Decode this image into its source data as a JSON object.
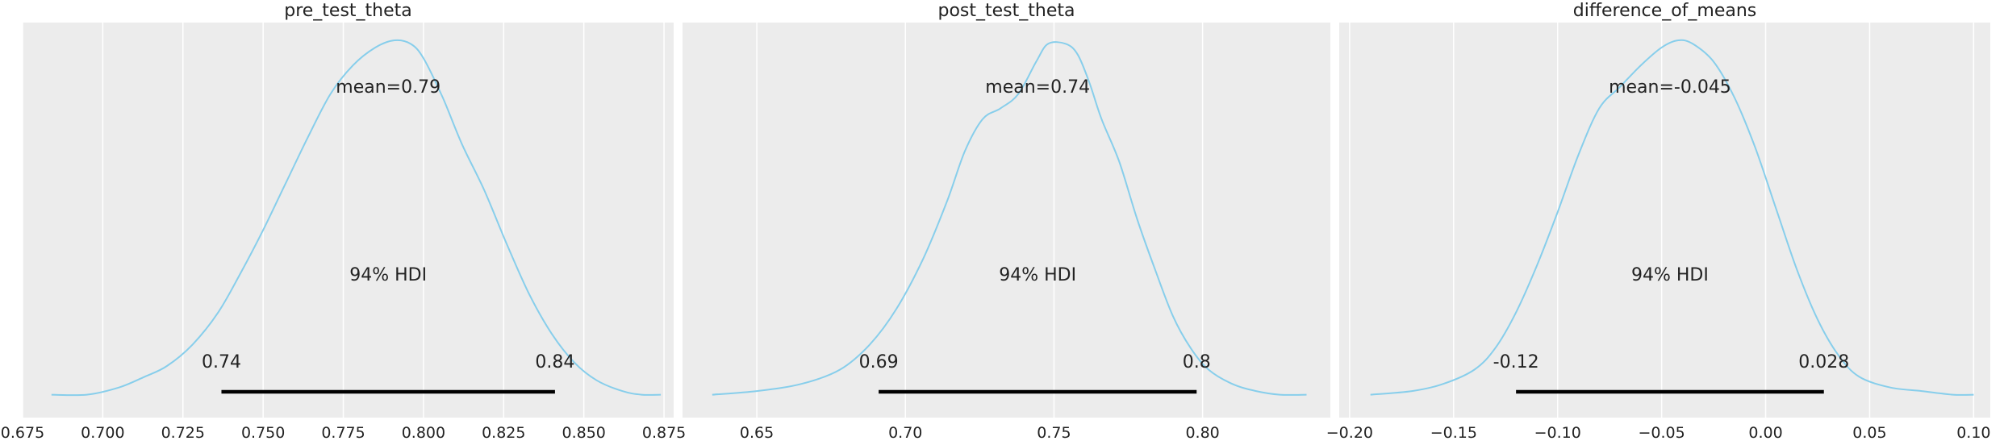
{
  "chart_data": [
    {
      "type": "density",
      "title": "pre_test_theta",
      "xlim": [
        0.675,
        0.878
      ],
      "xticks": [
        0.675,
        0.7,
        0.725,
        0.75,
        0.775,
        0.8,
        0.825,
        0.85,
        0.875
      ],
      "xtick_labels": [
        "0.675",
        "0.700",
        "0.725",
        "0.750",
        "0.775",
        "0.800",
        "0.825",
        "0.850",
        "0.875"
      ],
      "grid": true,
      "line_color": "#87ceeb",
      "density_x": [
        0.684,
        0.695,
        0.705,
        0.713,
        0.72,
        0.728,
        0.736,
        0.743,
        0.75,
        0.757,
        0.764,
        0.771,
        0.778,
        0.785,
        0.791,
        0.796,
        0.8,
        0.806,
        0.812,
        0.819,
        0.826,
        0.833,
        0.84,
        0.847,
        0.854,
        0.862,
        0.868,
        0.874
      ],
      "density_y": [
        0.01,
        0.01,
        0.03,
        0.06,
        0.09,
        0.15,
        0.24,
        0.35,
        0.47,
        0.6,
        0.73,
        0.85,
        0.93,
        0.98,
        1.0,
        0.99,
        0.95,
        0.84,
        0.71,
        0.58,
        0.43,
        0.29,
        0.18,
        0.1,
        0.05,
        0.02,
        0.01,
        0.01
      ],
      "mean_label": "mean=0.79",
      "hdi_label": "94% HDI",
      "hdi": [
        0.737,
        0.841
      ],
      "hdi_low_label": "0.74",
      "hdi_high_label": "0.84"
    },
    {
      "type": "density",
      "title": "post_test_theta",
      "xlim": [
        0.625,
        0.843
      ],
      "xticks": [
        0.65,
        0.7,
        0.75,
        0.8
      ],
      "xtick_labels": [
        "0.65",
        "0.70",
        "0.75",
        "0.80"
      ],
      "grid": true,
      "line_color": "#87ceeb",
      "density_x": [
        0.635,
        0.65,
        0.665,
        0.678,
        0.688,
        0.697,
        0.706,
        0.714,
        0.72,
        0.726,
        0.732,
        0.738,
        0.744,
        0.748,
        0.754,
        0.758,
        0.762,
        0.766,
        0.772,
        0.778,
        0.784,
        0.79,
        0.796,
        0.802,
        0.81,
        0.818,
        0.826,
        0.835
      ],
      "density_y": [
        0.01,
        0.02,
        0.04,
        0.08,
        0.15,
        0.25,
        0.39,
        0.55,
        0.69,
        0.78,
        0.81,
        0.85,
        0.94,
        0.99,
        0.99,
        0.96,
        0.88,
        0.78,
        0.66,
        0.5,
        0.36,
        0.23,
        0.14,
        0.08,
        0.04,
        0.02,
        0.01,
        0.01
      ],
      "mean_label": "mean=0.74",
      "hdi_label": "94% HDI",
      "hdi": [
        0.691,
        0.798
      ],
      "hdi_low_label": "0.69",
      "hdi_high_label": "0.8"
    },
    {
      "type": "density",
      "title": "difference_of_means",
      "xlim": [
        -0.205,
        0.108
      ],
      "xticks": [
        -0.2,
        -0.15,
        -0.1,
        -0.05,
        0.0,
        0.05,
        0.1
      ],
      "xtick_labels": [
        "−0.20",
        "−0.15",
        "−0.10",
        "−0.05",
        "0.00",
        "0.05",
        "0.10"
      ],
      "grid": true,
      "line_color": "#87ceeb",
      "density_x": [
        -0.19,
        -0.17,
        -0.155,
        -0.14,
        -0.13,
        -0.12,
        -0.11,
        -0.1,
        -0.09,
        -0.08,
        -0.07,
        -0.06,
        -0.05,
        -0.042,
        -0.035,
        -0.025,
        -0.015,
        -0.005,
        0.005,
        0.015,
        0.025,
        0.035,
        0.045,
        0.06,
        0.075,
        0.09,
        0.1
      ],
      "density_y": [
        0.01,
        0.02,
        0.04,
        0.08,
        0.14,
        0.24,
        0.37,
        0.52,
        0.68,
        0.81,
        0.87,
        0.93,
        0.98,
        1.0,
        0.99,
        0.94,
        0.84,
        0.7,
        0.53,
        0.36,
        0.22,
        0.12,
        0.06,
        0.03,
        0.02,
        0.01,
        0.01
      ],
      "mean_label": "mean=-0.045",
      "hdi_label": "94% HDI",
      "hdi": [
        -0.12,
        0.028
      ],
      "hdi_low_label": "-0.12",
      "hdi_high_label": "0.028"
    }
  ]
}
